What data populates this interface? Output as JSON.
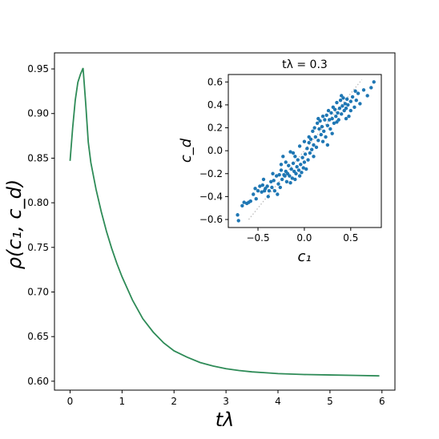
{
  "chart_data": [
    {
      "type": "line",
      "title": "",
      "xlabel": "tλ",
      "ylabel": "ρ(c₁, c_d)",
      "xlim": [
        -0.3,
        6.25
      ],
      "ylim": [
        0.59,
        0.968
      ],
      "xticks": [
        0,
        1,
        2,
        3,
        4,
        5,
        6
      ],
      "yticks": [
        0.6,
        0.65,
        0.7,
        0.75,
        0.8,
        0.85,
        0.9,
        0.95
      ],
      "xtick_labels": [
        "0",
        "1",
        "2",
        "3",
        "4",
        "5",
        "6"
      ],
      "ytick_labels": [
        "0.60",
        "0.65",
        "0.70",
        "0.75",
        "0.80",
        "0.85",
        "0.90",
        "0.95"
      ],
      "grid": false,
      "series": [
        {
          "color": "#2e8b57",
          "x": [
            0,
            0.05,
            0.1,
            0.15,
            0.2,
            0.25,
            0.3,
            0.35,
            0.4,
            0.5,
            0.6,
            0.7,
            0.8,
            0.9,
            1.0,
            1.2,
            1.4,
            1.6,
            1.8,
            2.0,
            2.25,
            2.5,
            2.75,
            3.0,
            3.25,
            3.5,
            3.75,
            4.0,
            4.5,
            5.0,
            5.5,
            5.95
          ],
          "y": [
            0.847,
            0.884,
            0.915,
            0.935,
            0.944,
            0.951,
            0.912,
            0.868,
            0.845,
            0.815,
            0.79,
            0.768,
            0.749,
            0.732,
            0.717,
            0.691,
            0.67,
            0.655,
            0.643,
            0.634,
            0.627,
            0.621,
            0.617,
            0.614,
            0.612,
            0.6105,
            0.6095,
            0.6085,
            0.6075,
            0.607,
            0.6065,
            0.606
          ]
        }
      ]
    },
    {
      "type": "scatter",
      "title": "tλ = 0.3",
      "xlabel": "c₁",
      "ylabel": "c_d",
      "xlim": [
        -0.82,
        0.83
      ],
      "ylim": [
        -0.67,
        0.665
      ],
      "xticks": [
        -0.5,
        0.0,
        0.5
      ],
      "yticks": [
        -0.6,
        -0.4,
        -0.2,
        0.0,
        0.2,
        0.4,
        0.6
      ],
      "xtick_labels": [
        "−0.5",
        "0.0",
        "0.5"
      ],
      "ytick_labels": [
        "−0.6",
        "−0.4",
        "−0.2",
        "0.0",
        "0.2",
        "0.4",
        "0.6"
      ],
      "grid": false,
      "reference_line": {
        "x": [
          -0.6,
          0.62
        ],
        "y": [
          -0.6,
          0.62
        ],
        "color": "#bbbbbb",
        "style": "dotted"
      },
      "series": [
        {
          "color": "#1f77b4",
          "points": [
            [
              -0.72,
              -0.56
            ],
            [
              -0.71,
              -0.61
            ],
            [
              -0.67,
              -0.48
            ],
            [
              -0.65,
              -0.45
            ],
            [
              -0.62,
              -0.46
            ],
            [
              -0.6,
              -0.45
            ],
            [
              -0.55,
              -0.38
            ],
            [
              -0.53,
              -0.33
            ],
            [
              -0.5,
              -0.35
            ],
            [
              -0.48,
              -0.31
            ],
            [
              -0.46,
              -0.36
            ],
            [
              -0.45,
              -0.3
            ],
            [
              -0.43,
              -0.35
            ],
            [
              -0.42,
              -0.33
            ],
            [
              -0.4,
              -0.31
            ],
            [
              -0.38,
              -0.35
            ],
            [
              -0.36,
              -0.27
            ],
            [
              -0.35,
              -0.32
            ],
            [
              -0.33,
              -0.26
            ],
            [
              -0.32,
              -0.35
            ],
            [
              -0.3,
              -0.22
            ],
            [
              -0.28,
              -0.29
            ],
            [
              -0.27,
              -0.21
            ],
            [
              -0.26,
              -0.32
            ],
            [
              -0.25,
              -0.17
            ],
            [
              -0.24,
              -0.25
            ],
            [
              -0.23,
              -0.05
            ],
            [
              -0.22,
              -0.21
            ],
            [
              -0.21,
              -0.22
            ],
            [
              -0.2,
              -0.18
            ],
            [
              -0.19,
              -0.27
            ],
            [
              -0.18,
              -0.2
            ],
            [
              -0.17,
              -0.13
            ],
            [
              -0.16,
              -0.22
            ],
            [
              -0.15,
              -0.01
            ],
            [
              -0.14,
              -0.16
            ],
            [
              -0.13,
              -0.24
            ],
            [
              -0.12,
              -0.11
            ],
            [
              -0.11,
              -0.18
            ],
            [
              -0.1,
              -0.05
            ],
            [
              -0.09,
              -0.2
            ],
            [
              -0.08,
              -0.14
            ],
            [
              -0.07,
              -0.08
            ],
            [
              -0.06,
              -0.17
            ],
            [
              -0.05,
              0.04
            ],
            [
              -0.04,
              -0.12
            ],
            [
              -0.03,
              -0.19
            ],
            [
              -0.02,
              -0.06
            ],
            [
              -0.01,
              -0.15
            ],
            [
              0.0,
              -0.1
            ],
            [
              0.01,
              -0.03
            ],
            [
              0.02,
              -0.16
            ],
            [
              0.03,
              0.02
            ],
            [
              0.04,
              -0.08
            ],
            [
              0.05,
              0.07
            ],
            [
              0.06,
              -0.02
            ],
            [
              0.07,
              0.1
            ],
            [
              0.08,
              0.01
            ],
            [
              0.09,
              0.17
            ],
            [
              0.1,
              0.05
            ],
            [
              0.11,
              0.2
            ],
            [
              0.12,
              0.12
            ],
            [
              0.13,
              0.03
            ],
            [
              0.14,
              0.24
            ],
            [
              0.15,
              0.09
            ],
            [
              0.16,
              0.19
            ],
            [
              0.17,
              0.26
            ],
            [
              0.18,
              0.14
            ],
            [
              0.19,
              0.21
            ],
            [
              0.2,
              0.3
            ],
            [
              0.21,
              0.17
            ],
            [
              0.22,
              0.27
            ],
            [
              0.23,
              0.12
            ],
            [
              0.24,
              0.31
            ],
            [
              0.25,
              0.22
            ],
            [
              0.26,
              0.35
            ],
            [
              0.27,
              0.27
            ],
            [
              0.28,
              0.19
            ],
            [
              0.29,
              0.33
            ],
            [
              0.3,
              0.28
            ],
            [
              0.31,
              0.38
            ],
            [
              0.32,
              0.24
            ],
            [
              0.33,
              0.36
            ],
            [
              0.34,
              0.3
            ],
            [
              0.35,
              0.42
            ],
            [
              0.36,
              0.33
            ],
            [
              0.37,
              0.27
            ],
            [
              0.38,
              0.37
            ],
            [
              0.39,
              0.44
            ],
            [
              0.4,
              0.32
            ],
            [
              0.41,
              0.39
            ],
            [
              0.42,
              0.46
            ],
            [
              0.43,
              0.35
            ],
            [
              0.44,
              0.41
            ],
            [
              0.45,
              0.37
            ],
            [
              0.46,
              0.45
            ],
            [
              0.47,
              0.4
            ],
            [
              0.48,
              0.3
            ],
            [
              0.5,
              0.43
            ],
            [
              0.52,
              0.47
            ],
            [
              0.54,
              0.38
            ],
            [
              0.56,
              0.44
            ],
            [
              0.58,
              0.5
            ],
            [
              0.6,
              0.41
            ],
            [
              0.64,
              0.53
            ],
            [
              0.68,
              0.48
            ],
            [
              0.72,
              0.55
            ],
            [
              0.75,
              0.6
            ],
            [
              -0.58,
              -0.44
            ],
            [
              -0.52,
              -0.42
            ],
            [
              -0.44,
              -0.25
            ],
            [
              -0.39,
              -0.4
            ],
            [
              -0.34,
              -0.2
            ],
            [
              -0.29,
              -0.38
            ],
            [
              -0.2,
              -0.1
            ],
            [
              -0.15,
              -0.28
            ],
            [
              -0.1,
              -0.25
            ],
            [
              -0.05,
              -0.22
            ],
            [
              0.0,
              0.08
            ],
            [
              0.05,
              0.12
            ],
            [
              0.1,
              -0.05
            ],
            [
              0.15,
              0.28
            ],
            [
              0.2,
              0.08
            ],
            [
              0.25,
              0.05
            ],
            [
              0.3,
              0.15
            ],
            [
              0.35,
              0.25
            ],
            [
              0.4,
              0.48
            ],
            [
              0.45,
              0.28
            ],
            [
              0.5,
              0.35
            ],
            [
              0.55,
              0.52
            ],
            [
              -0.25,
              -0.12
            ],
            [
              -0.12,
              -0.02
            ]
          ]
        }
      ]
    }
  ]
}
